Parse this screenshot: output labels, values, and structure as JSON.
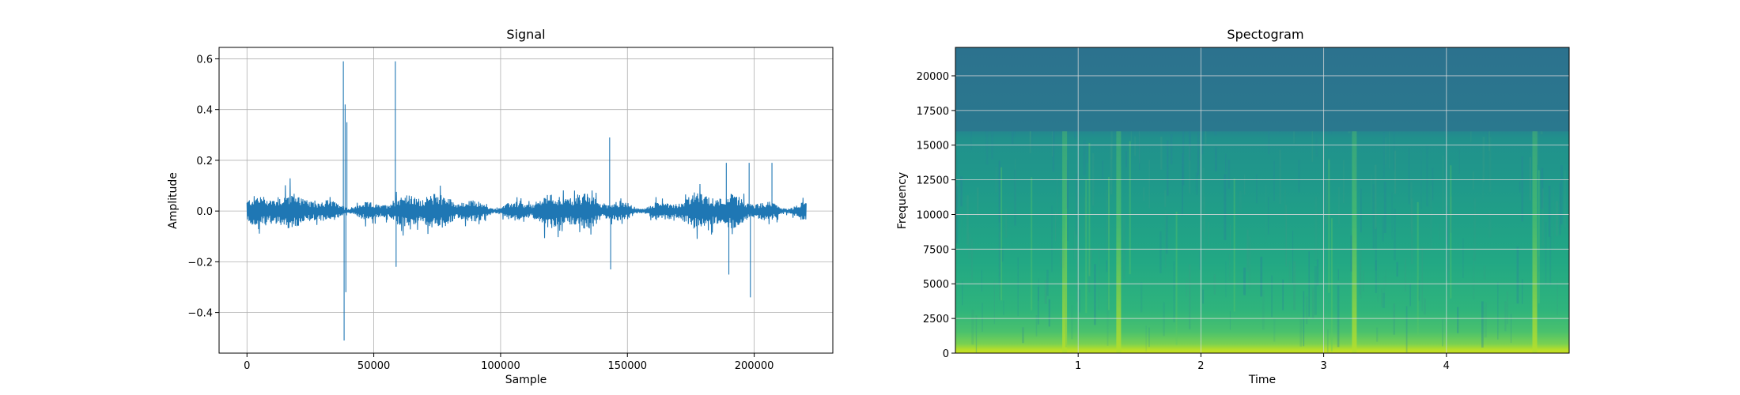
{
  "chart_data": [
    {
      "type": "line",
      "title": "Signal",
      "xlabel": "Sample",
      "ylabel": "Amplitude",
      "xlim": [
        -11000,
        231000
      ],
      "ylim": [
        -0.56,
        0.645
      ],
      "xticks": [
        0,
        50000,
        100000,
        150000,
        200000
      ],
      "xtick_labels": [
        "0",
        "50000",
        "100000",
        "150000",
        "200000"
      ],
      "yticks": [
        -0.4,
        -0.2,
        0.0,
        0.2,
        0.4,
        0.6
      ],
      "ytick_labels": [
        "−0.4",
        "−0.2",
        "0.0",
        "0.2",
        "0.4",
        "0.6"
      ],
      "grid": true,
      "n_samples": 220500,
      "noise_envelope": 0.06,
      "series": [
        {
          "color": "#1f77b4",
          "spikes": [
            {
              "x": 38000,
              "y": 0.59
            },
            {
              "x": 38300,
              "y": -0.51
            },
            {
              "x": 38700,
              "y": 0.42
            },
            {
              "x": 39000,
              "y": -0.32
            },
            {
              "x": 39400,
              "y": 0.35
            },
            {
              "x": 58500,
              "y": 0.59
            },
            {
              "x": 58800,
              "y": -0.22
            },
            {
              "x": 143000,
              "y": 0.29
            },
            {
              "x": 143400,
              "y": -0.23
            },
            {
              "x": 189000,
              "y": 0.19
            },
            {
              "x": 190000,
              "y": -0.25
            },
            {
              "x": 198000,
              "y": 0.19
            },
            {
              "x": 198500,
              "y": -0.34
            },
            {
              "x": 207000,
              "y": 0.19
            }
          ]
        }
      ]
    },
    {
      "type": "heatmap",
      "title": "Spectogram",
      "xlabel": "Time",
      "ylabel": "Frequency",
      "xlim": [
        0.0,
        5.0
      ],
      "ylim": [
        0,
        22050
      ],
      "xticks": [
        1,
        2,
        3,
        4
      ],
      "xtick_labels": [
        "1",
        "2",
        "3",
        "4"
      ],
      "yticks": [
        0,
        2500,
        5000,
        7500,
        10000,
        12500,
        15000,
        17500,
        20000
      ],
      "ytick_labels": [
        "0",
        "2500",
        "5000",
        "7500",
        "10000",
        "12500",
        "15000",
        "17500",
        "20000"
      ],
      "grid": true,
      "colormap": "viridis",
      "cutoff_frequency": 16000,
      "transient_times": [
        0.89,
        1.33,
        3.25,
        4.72
      ]
    }
  ]
}
